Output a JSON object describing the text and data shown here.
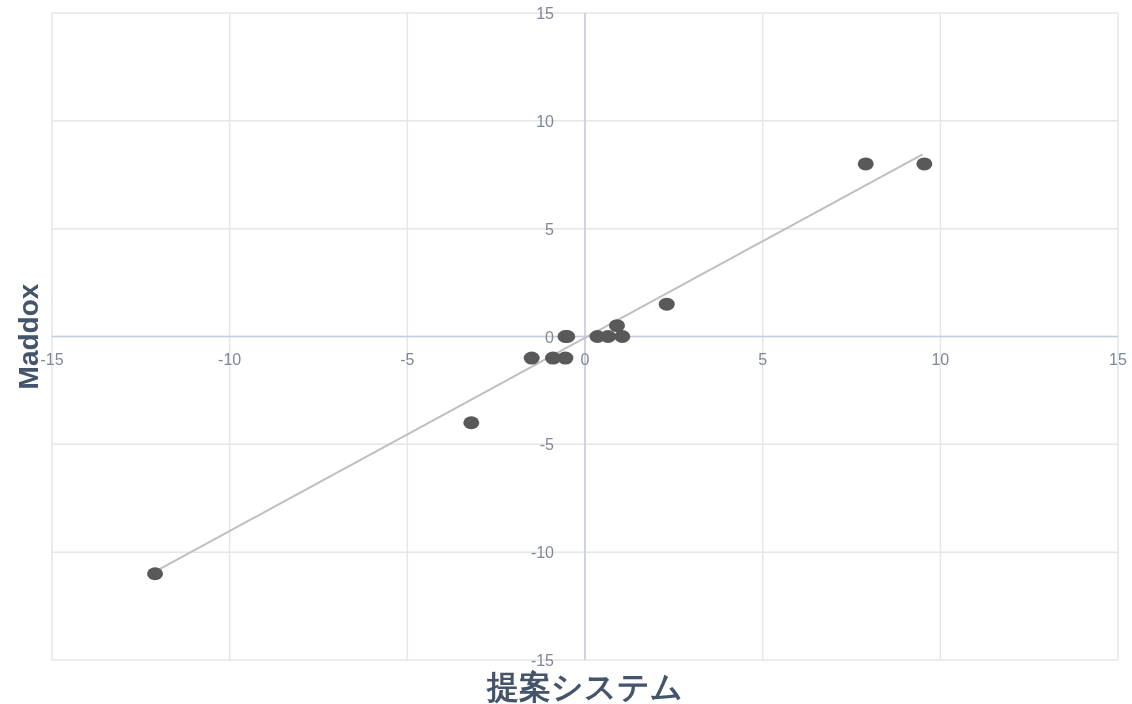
{
  "chart_data": {
    "type": "scatter",
    "xlabel": "提案システム",
    "ylabel": "Maddox",
    "xlim": [
      -15,
      15
    ],
    "ylim": [
      -15,
      15
    ],
    "xticks": [
      -15,
      -10,
      -5,
      0,
      5,
      10,
      15
    ],
    "yticks": [
      -15,
      -10,
      -5,
      0,
      5,
      10,
      15
    ],
    "grid": true,
    "marker": "circle",
    "series": [
      {
        "type": "line",
        "marker": "none",
        "color": "#bfbfbf",
        "x": [
          -12.1,
          9.5
        ],
        "values": [
          -10.9,
          8.45
        ]
      },
      {
        "color": "#595959",
        "x": [
          -12.1,
          -3.2,
          -1.5,
          -0.9,
          -0.55,
          -0.55,
          -0.5,
          0.35,
          0.65,
          1.05,
          0.9,
          2.3,
          7.9,
          9.55
        ],
        "values": [
          -11,
          -4,
          -1,
          -1,
          -1,
          0,
          0,
          0,
          0,
          0,
          0.5,
          1.5,
          8,
          8
        ]
      }
    ]
  }
}
